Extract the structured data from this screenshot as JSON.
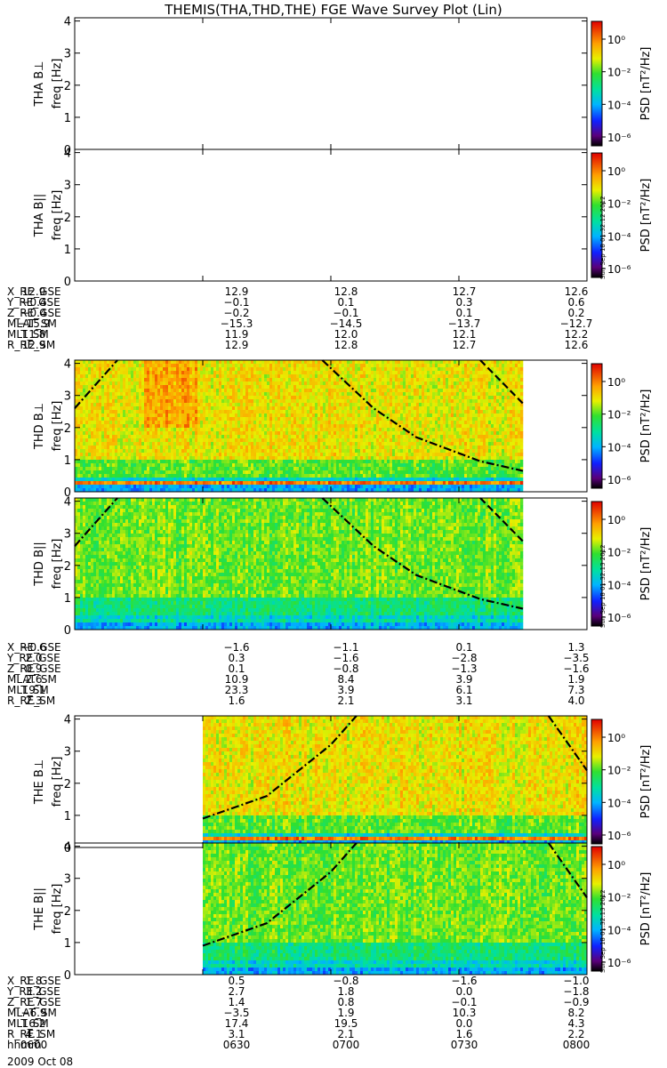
{
  "title": "THEMIS(THA,THD,THE) FGE Wave Survey Plot (Lin)",
  "date_label": "2009 Oct 08",
  "colorbar": {
    "label": "PSD [nT²/Hz]",
    "tick_labels": [
      "10⁰",
      "10⁻²",
      "10⁻⁴",
      "10⁻⁶"
    ],
    "stamps": [
      "Sun Sep 18 01:32:12 2012",
      "Sun Sep 18 01:32:13 2012",
      "Sun Sep 18 01:32:13 2012"
    ]
  },
  "chart_data": {
    "type": "heatmap",
    "x_axis": {
      "label": "hhmm",
      "ticks": [
        "0600",
        "0630",
        "0700",
        "0730",
        "0800"
      ],
      "range": [
        "0600",
        "0800"
      ]
    },
    "y_axis": {
      "label": "freq [Hz]",
      "range": [
        0,
        4.1
      ],
      "ticks": [
        "0",
        "1",
        "2",
        "3",
        "4"
      ]
    },
    "colorscale": {
      "range_psd": [
        1e-06,
        10
      ],
      "scale": "log",
      "colormap": "rainbow"
    },
    "panels": [
      {
        "ylabel": "THA B⊥",
        "has_data": false,
        "data_start": "",
        "data_end": ""
      },
      {
        "ylabel": "THA B||",
        "has_data": false,
        "data_start": "",
        "data_end": ""
      },
      {
        "ylabel": "THD B⊥",
        "has_data": true,
        "data_start": "0600",
        "data_end": "0745",
        "lines": [
          {
            "style": "dash-dot",
            "points": [
              [
                "0600",
                2.6
              ],
              [
                "0610",
                4.1
              ]
            ]
          },
          {
            "style": "dash-dot",
            "points": [
              [
                "0658",
                4.1
              ],
              [
                "0710",
                2.6
              ],
              [
                "0720",
                1.7
              ],
              [
                "0735",
                0.95
              ],
              [
                "0745",
                0.65
              ]
            ]
          },
          {
            "style": "dash",
            "points": [
              [
                "0735",
                4.1
              ],
              [
                "0745",
                2.75
              ]
            ]
          }
        ]
      },
      {
        "ylabel": "THD B||",
        "has_data": true,
        "data_start": "0600",
        "data_end": "0745",
        "lines": [
          {
            "style": "dash-dot",
            "points": [
              [
                "0600",
                2.6
              ],
              [
                "0610",
                4.1
              ]
            ]
          },
          {
            "style": "dash-dot",
            "points": [
              [
                "0658",
                4.1
              ],
              [
                "0710",
                2.6
              ],
              [
                "0720",
                1.7
              ],
              [
                "0735",
                0.95
              ],
              [
                "0745",
                0.65
              ]
            ]
          },
          {
            "style": "dash",
            "points": [
              [
                "0735",
                4.1
              ],
              [
                "0745",
                2.75
              ]
            ]
          }
        ]
      },
      {
        "ylabel": "THE B⊥",
        "has_data": true,
        "data_start": "0630",
        "data_end": "0800",
        "lines": [
          {
            "style": "dash-dot",
            "points": [
              [
                "0630",
                0.9
              ],
              [
                "0645",
                1.6
              ],
              [
                "0700",
                3.2
              ],
              [
                "0706",
                4.1
              ]
            ]
          },
          {
            "style": "dash-dot",
            "points": [
              [
                "0751",
                4.1
              ],
              [
                "0800",
                2.4
              ]
            ]
          }
        ]
      },
      {
        "ylabel": "THE B||",
        "has_data": true,
        "data_start": "0630",
        "data_end": "0800",
        "lines": [
          {
            "style": "dash-dot",
            "points": [
              [
                "0630",
                0.9
              ],
              [
                "0645",
                1.6
              ],
              [
                "0700",
                3.2
              ],
              [
                "0706",
                4.1
              ]
            ]
          },
          {
            "style": "dash-dot",
            "points": [
              [
                "0751",
                4.1
              ],
              [
                "0800",
                2.4
              ]
            ]
          }
        ]
      }
    ]
  },
  "orbit_tables": [
    {
      "rows": [
        {
          "label": "X_RE_GSE",
          "values": [
            "12.9",
            "12.9",
            "12.8",
            "12.7",
            "12.6"
          ]
        },
        {
          "label": "Y_RE_GSE",
          "values": [
            "−0.4",
            "−0.1",
            "0.1",
            "0.3",
            "0.6"
          ]
        },
        {
          "label": "Z_RE_GSE",
          "values": [
            "−0.4",
            "−0.2",
            "−0.1",
            "0.1",
            "0.2"
          ]
        },
        {
          "label": "MLAT_SM",
          "values": [
            "−15.9",
            "−15.3",
            "−14.5",
            "−13.7",
            "−12.7"
          ]
        },
        {
          "label": "MLT_SM",
          "values": [
            "11.8",
            "11.9",
            "12.0",
            "12.1",
            "12.2"
          ]
        },
        {
          "label": "R_RE_SM",
          "values": [
            "12.9",
            "12.9",
            "12.8",
            "12.7",
            "12.6"
          ]
        }
      ]
    },
    {
      "rows": [
        {
          "label": "X_RE_GSE",
          "values": [
            "−0.6",
            "−1.6",
            "−1.1",
            "0.1",
            "1.3"
          ]
        },
        {
          "label": "Y_RE_GSE",
          "values": [
            "2.0",
            "0.3",
            "−1.6",
            "−2.8",
            "−3.5"
          ]
        },
        {
          "label": "Z_RE_GSE",
          "values": [
            "0.9",
            "0.1",
            "−0.8",
            "−1.3",
            "−1.6"
          ]
        },
        {
          "label": "MLAT_SM",
          "values": [
            "2.6",
            "10.9",
            "8.4",
            "3.9",
            "1.9"
          ]
        },
        {
          "label": "MLT_SM",
          "values": [
            "19.1",
            "23.3",
            "3.9",
            "6.1",
            "7.3"
          ]
        },
        {
          "label": "R_RE_SM",
          "values": [
            "2.3",
            "1.6",
            "2.1",
            "3.1",
            "4.0"
          ]
        }
      ]
    },
    {
      "rows": [
        {
          "label": "X_RE_GSE",
          "values": [
            "1.8",
            "0.5",
            "−0.8",
            "−1.6",
            "−1.0"
          ]
        },
        {
          "label": "Y_RE_GSE",
          "values": [
            "3.2",
            "2.7",
            "1.8",
            "0.0",
            "−1.8"
          ]
        },
        {
          "label": "Z_RE_GSE",
          "values": [
            "1.7",
            "1.4",
            "0.8",
            "−0.1",
            "−0.9"
          ]
        },
        {
          "label": "MLAT_SM",
          "values": [
            "−6.9",
            "−3.5",
            "1.9",
            "10.3",
            "8.2"
          ]
        },
        {
          "label": "MLT_SM",
          "values": [
            "16.2",
            "17.4",
            "19.5",
            "0.0",
            "4.3"
          ]
        },
        {
          "label": "R_RE_SM",
          "values": [
            "4.1",
            "3.1",
            "2.1",
            "1.6",
            "2.2"
          ]
        },
        {
          "label": "hhmm",
          "values": [
            "0600",
            "0630",
            "0700",
            "0730",
            "0800"
          ]
        }
      ]
    }
  ]
}
